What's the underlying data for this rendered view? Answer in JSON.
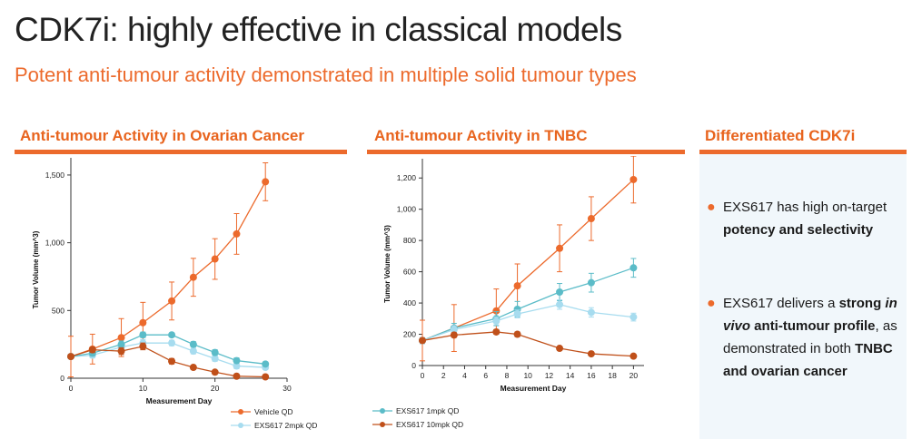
{
  "title": "CDK7i: highly effective in classical models",
  "subtitle": "Potent anti-tumour activity demonstrated in multiple solid tumour types",
  "colors": {
    "orange": "#ec6a2c",
    "dark_orange": "#c0501a",
    "teal": "#5bbcc8",
    "light_blue": "#a7dcef"
  },
  "sections": {
    "ovarian": "Anti-tumour Activity in Ovarian Cancer",
    "tnbc": "Anti-tumour Activity in TNBC",
    "diff": "Differentiated CDK7i"
  },
  "bullets": [
    {
      "a": "EXS617 has high on-target ",
      "b": "potency and selectivity",
      "c": ""
    },
    {
      "a": "EXS617 delivers a ",
      "b": "strong ",
      "i": "in vivo",
      "b2": " anti-tumour profile",
      "c": ", as demonstrated in both ",
      "d": "TNBC and ovarian cancer"
    }
  ],
  "chart_data": [
    {
      "type": "line",
      "title": "Anti-tumour Activity in Ovarian Cancer",
      "xlabel": "Measurement Day",
      "ylabel": "Tumor Volume (mm^3)",
      "xlim": [
        0,
        30
      ],
      "ylim": [
        0,
        1600
      ],
      "xticks": [
        0,
        10,
        20,
        30
      ],
      "yticks": [
        0,
        500,
        1000,
        1500
      ],
      "ytick_labels": [
        "0",
        "500",
        "1,000",
        "1,500"
      ],
      "series": [
        {
          "name": "Vehicle QD",
          "color": "#ec6a2c",
          "x": [
            0,
            3,
            7,
            10,
            14,
            17,
            20,
            23,
            27
          ],
          "y": [
            160,
            215,
            300,
            410,
            570,
            745,
            880,
            1065,
            1450
          ],
          "err": [
            150,
            110,
            140,
            150,
            140,
            140,
            150,
            150,
            140
          ]
        },
        {
          "name": "EXS617 2mpk QD",
          "color": "#a7dcef",
          "x": [
            0,
            3,
            7,
            10,
            14,
            17,
            20,
            23,
            27
          ],
          "y": [
            160,
            170,
            230,
            260,
            260,
            200,
            145,
            90,
            80
          ],
          "err": [
            15,
            20,
            25,
            25,
            20,
            20,
            20,
            20,
            15
          ]
        },
        {
          "name": "EXS617 1mpk QD",
          "color": "#5bbcc8",
          "legend": false,
          "x": [
            0,
            3,
            7,
            10,
            14,
            17,
            20,
            23,
            27
          ],
          "y": [
            160,
            185,
            250,
            320,
            320,
            250,
            190,
            130,
            105
          ],
          "err": [
            15,
            20,
            25,
            20,
            15,
            20,
            20,
            20,
            15
          ]
        },
        {
          "name": "EXS617 10mpk QD",
          "color": "#c0501a",
          "legend": false,
          "x": [
            0,
            3,
            7,
            10,
            14,
            17,
            20,
            23,
            27
          ],
          "y": [
            160,
            210,
            200,
            235,
            125,
            80,
            45,
            15,
            10
          ],
          "err": [
            15,
            20,
            25,
            25,
            20,
            15,
            10,
            5,
            5
          ]
        }
      ],
      "legend": [
        "Vehicle QD",
        "EXS617 2mpk QD"
      ]
    },
    {
      "type": "line",
      "title": "Anti-tumour Activity in TNBC",
      "xlabel": "Measurement Day",
      "ylabel": "Tumor Volume (mm^3)",
      "xlim": [
        0,
        21
      ],
      "ylim": [
        0,
        1300
      ],
      "xticks": [
        0,
        2,
        4,
        6,
        8,
        10,
        12,
        14,
        16,
        18,
        20
      ],
      "yticks": [
        0,
        200,
        400,
        600,
        800,
        1000,
        1200
      ],
      "ytick_labels": [
        "0",
        "200",
        "400",
        "600",
        "800",
        "1,000",
        "1,200"
      ],
      "series": [
        {
          "name": "Vehicle QD",
          "color": "#ec6a2c",
          "legend": false,
          "x": [
            0,
            3,
            7,
            9,
            13,
            16,
            20
          ],
          "y": [
            160,
            240,
            350,
            510,
            750,
            940,
            1190
          ],
          "err": [
            130,
            150,
            140,
            140,
            150,
            140,
            150
          ]
        },
        {
          "name": "EXS617 1mpk QD",
          "color": "#5bbcc8",
          "x": [
            0,
            3,
            7,
            9,
            13,
            16,
            20
          ],
          "y": [
            160,
            240,
            300,
            360,
            470,
            530,
            625
          ],
          "err": [
            20,
            30,
            45,
            50,
            55,
            60,
            60
          ]
        },
        {
          "name": "EXS617 2mpk QD",
          "color": "#a7dcef",
          "legend": false,
          "x": [
            0,
            3,
            7,
            9,
            13,
            16,
            20
          ],
          "y": [
            160,
            230,
            285,
            330,
            390,
            340,
            310
          ],
          "err": [
            20,
            25,
            25,
            25,
            30,
            30,
            25
          ]
        },
        {
          "name": "EXS617 10mpk QD",
          "color": "#c0501a",
          "x": [
            0,
            3,
            7,
            9,
            13,
            16,
            20
          ],
          "y": [
            160,
            195,
            215,
            200,
            110,
            75,
            60
          ],
          "err": [
            15,
            15,
            15,
            15,
            12,
            10,
            10
          ]
        }
      ],
      "legend": [
        "EXS617 1mpk QD",
        "EXS617 10mpk QD"
      ]
    }
  ]
}
